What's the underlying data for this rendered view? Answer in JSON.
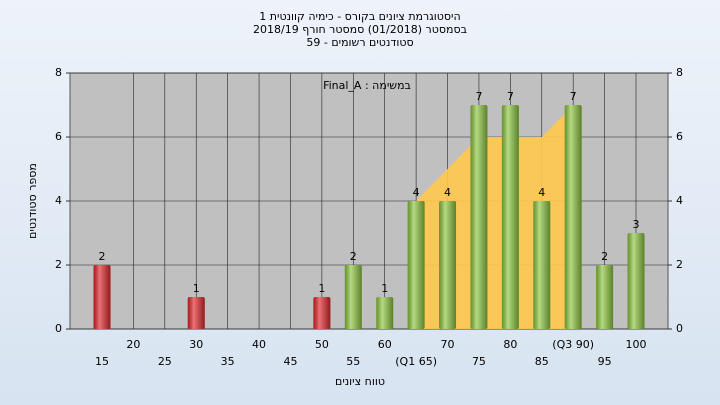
{
  "chart_data": {
    "type": "bar",
    "title": [
      "היסטוגרמת ציונים בקורס - כימיה קוונטית 1",
      "בסמסטר  (01/2018)  סמסטר חורף 2018/19",
      "סטודנטים רשומים - 59"
    ],
    "annotation": "במשימה : Final_A",
    "x_label": "טווח ציונים",
    "y_label": "מספר סטודנטים",
    "categories": [
      "15",
      "20",
      "25",
      "30",
      "35",
      "40",
      "45",
      "50",
      "55",
      "60",
      "(Q1 65)",
      "70",
      "75",
      "80",
      "85",
      "(Q3 90)",
      "95",
      "100"
    ],
    "values": [
      2,
      0,
      0,
      1,
      0,
      0,
      0,
      1,
      2,
      1,
      4,
      4,
      7,
      7,
      4,
      7,
      2,
      3
    ],
    "colors": [
      "#e0262b",
      "#e0262b",
      "#e0262b",
      "#e0262b",
      "#e0262b",
      "#e0262b",
      "#e0262b",
      "#e0262b",
      "#8cc63f",
      "#8cc63f",
      "#8cc63f",
      "#8cc63f",
      "#8cc63f",
      "#8cc63f",
      "#8cc63f",
      "#8cc63f",
      "#8cc63f",
      "#8cc63f"
    ],
    "area": {
      "x": [
        10,
        12,
        14,
        15
      ],
      "values": [
        4,
        6,
        6,
        7
      ],
      "color": "#ffc94d"
    },
    "ylim": [
      0,
      8
    ],
    "yticks": [
      0,
      2,
      4,
      6,
      8
    ],
    "grid": true
  }
}
